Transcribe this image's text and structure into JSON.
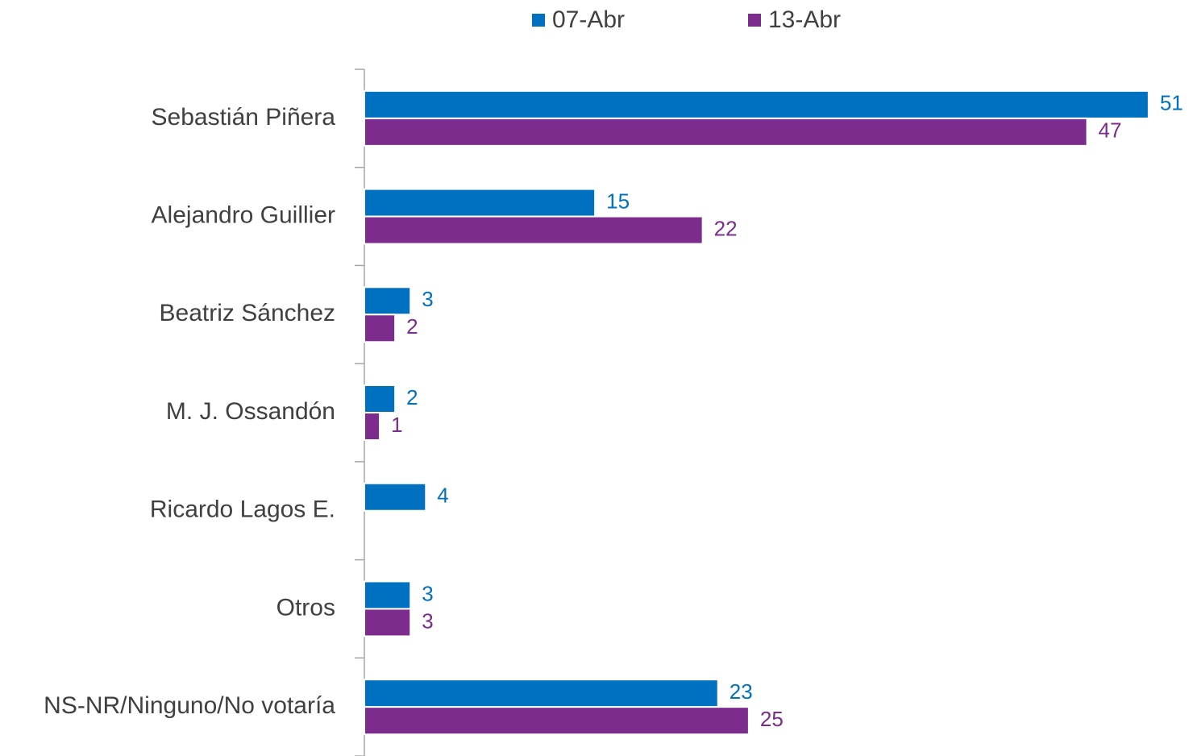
{
  "chart_data": {
    "type": "bar",
    "orientation": "horizontal",
    "categories": [
      "Sebastián Piñera",
      "Alejandro Guillier",
      "Beatriz Sánchez",
      "M. J. Ossandón",
      "Ricardo Lagos E.",
      "Otros",
      "NS-NR/Ninguno/No votaría"
    ],
    "series": [
      {
        "name": "07-Abr",
        "color": "#0070c0",
        "values": [
          51,
          15,
          3,
          2,
          4,
          3,
          23
        ]
      },
      {
        "name": "13-Abr",
        "color": "#7b2c8c",
        "values": [
          47,
          22,
          2,
          1,
          null,
          3,
          25
        ]
      }
    ],
    "xlim": [
      0,
      53
    ],
    "legend": "top"
  }
}
